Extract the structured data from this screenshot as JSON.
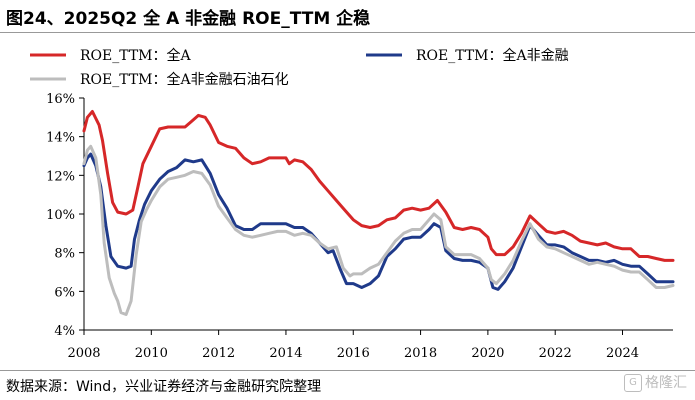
{
  "title": "图24、2025Q2 全 A 非金融 ROE_TTM 企稳",
  "source": "数据来源：Wind，兴业证券经济与金融研究院整理",
  "watermark": "格隆汇",
  "chart_data": {
    "type": "line",
    "xlabel": "",
    "ylabel": "",
    "xlim": [
      2008,
      2025.5
    ],
    "ylim": [
      4,
      16
    ],
    "x_ticks": [
      "2008",
      "2010",
      "2012",
      "2014",
      "2016",
      "2018",
      "2020",
      "2022",
      "2024"
    ],
    "y_ticks": [
      "4%",
      "6%",
      "8%",
      "10%",
      "12%",
      "14%",
      "16%"
    ],
    "grid": false,
    "legend_placement": "top",
    "series": [
      {
        "name": "ROE_TTM：全A",
        "color": "#d62728",
        "points": [
          [
            2008.0,
            14.3
          ],
          [
            2008.1,
            15.0
          ],
          [
            2008.25,
            15.3
          ],
          [
            2008.45,
            14.6
          ],
          [
            2008.55,
            13.8
          ],
          [
            2008.7,
            12.1
          ],
          [
            2008.85,
            10.6
          ],
          [
            2009.0,
            10.1
          ],
          [
            2009.25,
            10.0
          ],
          [
            2009.45,
            10.2
          ],
          [
            2009.6,
            11.4
          ],
          [
            2009.75,
            12.6
          ],
          [
            2010.0,
            13.5
          ],
          [
            2010.25,
            14.4
          ],
          [
            2010.5,
            14.5
          ],
          [
            2010.75,
            14.5
          ],
          [
            2011.0,
            14.5
          ],
          [
            2011.2,
            14.8
          ],
          [
            2011.4,
            15.1
          ],
          [
            2011.6,
            15.0
          ],
          [
            2011.75,
            14.6
          ],
          [
            2012.0,
            13.7
          ],
          [
            2012.25,
            13.5
          ],
          [
            2012.5,
            13.4
          ],
          [
            2012.75,
            12.9
          ],
          [
            2013.0,
            12.6
          ],
          [
            2013.25,
            12.7
          ],
          [
            2013.5,
            12.9
          ],
          [
            2013.75,
            12.9
          ],
          [
            2014.0,
            12.9
          ],
          [
            2014.1,
            12.6
          ],
          [
            2014.25,
            12.8
          ],
          [
            2014.5,
            12.7
          ],
          [
            2014.75,
            12.3
          ],
          [
            2015.0,
            11.7
          ],
          [
            2015.25,
            11.2
          ],
          [
            2015.5,
            10.7
          ],
          [
            2015.75,
            10.2
          ],
          [
            2016.0,
            9.7
          ],
          [
            2016.25,
            9.4
          ],
          [
            2016.5,
            9.3
          ],
          [
            2016.75,
            9.4
          ],
          [
            2017.0,
            9.7
          ],
          [
            2017.25,
            9.8
          ],
          [
            2017.5,
            10.2
          ],
          [
            2017.75,
            10.3
          ],
          [
            2018.0,
            10.2
          ],
          [
            2018.25,
            10.3
          ],
          [
            2018.5,
            10.7
          ],
          [
            2018.75,
            10.1
          ],
          [
            2019.0,
            9.3
          ],
          [
            2019.25,
            9.2
          ],
          [
            2019.5,
            9.3
          ],
          [
            2019.75,
            9.2
          ],
          [
            2020.0,
            8.8
          ],
          [
            2020.1,
            8.2
          ],
          [
            2020.25,
            7.9
          ],
          [
            2020.5,
            7.9
          ],
          [
            2020.75,
            8.3
          ],
          [
            2021.0,
            9.0
          ],
          [
            2021.25,
            9.9
          ],
          [
            2021.5,
            9.5
          ],
          [
            2021.75,
            9.1
          ],
          [
            2022.0,
            9.0
          ],
          [
            2022.25,
            9.1
          ],
          [
            2022.5,
            8.9
          ],
          [
            2022.75,
            8.6
          ],
          [
            2023.0,
            8.5
          ],
          [
            2023.25,
            8.4
          ],
          [
            2023.5,
            8.5
          ],
          [
            2023.75,
            8.3
          ],
          [
            2024.0,
            8.2
          ],
          [
            2024.25,
            8.2
          ],
          [
            2024.5,
            7.8
          ],
          [
            2024.75,
            7.8
          ],
          [
            2025.0,
            7.7
          ],
          [
            2025.25,
            7.6
          ],
          [
            2025.5,
            7.6
          ]
        ]
      },
      {
        "name": "ROE_TTM：全A非金融",
        "color": "#1f3a8a",
        "points": [
          [
            2008.0,
            12.5
          ],
          [
            2008.1,
            12.9
          ],
          [
            2008.2,
            13.1
          ],
          [
            2008.35,
            12.5
          ],
          [
            2008.5,
            11.4
          ],
          [
            2008.65,
            9.4
          ],
          [
            2008.8,
            7.8
          ],
          [
            2009.0,
            7.3
          ],
          [
            2009.25,
            7.2
          ],
          [
            2009.4,
            7.3
          ],
          [
            2009.5,
            8.7
          ],
          [
            2009.65,
            9.7
          ],
          [
            2009.8,
            10.5
          ],
          [
            2010.0,
            11.2
          ],
          [
            2010.25,
            11.8
          ],
          [
            2010.5,
            12.2
          ],
          [
            2010.75,
            12.4
          ],
          [
            2011.0,
            12.8
          ],
          [
            2011.25,
            12.7
          ],
          [
            2011.5,
            12.8
          ],
          [
            2011.75,
            12.1
          ],
          [
            2012.0,
            11.0
          ],
          [
            2012.25,
            10.3
          ],
          [
            2012.5,
            9.4
          ],
          [
            2012.75,
            9.2
          ],
          [
            2013.0,
            9.2
          ],
          [
            2013.25,
            9.5
          ],
          [
            2013.5,
            9.5
          ],
          [
            2013.75,
            9.5
          ],
          [
            2014.0,
            9.5
          ],
          [
            2014.25,
            9.3
          ],
          [
            2014.5,
            9.3
          ],
          [
            2014.75,
            9.0
          ],
          [
            2015.0,
            8.5
          ],
          [
            2015.25,
            8.0
          ],
          [
            2015.4,
            8.1
          ],
          [
            2015.6,
            7.2
          ],
          [
            2015.8,
            6.4
          ],
          [
            2016.0,
            6.4
          ],
          [
            2016.25,
            6.2
          ],
          [
            2016.5,
            6.4
          ],
          [
            2016.75,
            6.8
          ],
          [
            2017.0,
            7.8
          ],
          [
            2017.25,
            8.2
          ],
          [
            2017.5,
            8.7
          ],
          [
            2017.75,
            8.8
          ],
          [
            2018.0,
            8.8
          ],
          [
            2018.25,
            9.2
          ],
          [
            2018.4,
            9.5
          ],
          [
            2018.6,
            9.3
          ],
          [
            2018.75,
            8.1
          ],
          [
            2019.0,
            7.7
          ],
          [
            2019.25,
            7.6
          ],
          [
            2019.5,
            7.6
          ],
          [
            2019.75,
            7.5
          ],
          [
            2020.0,
            7.2
          ],
          [
            2020.15,
            6.2
          ],
          [
            2020.3,
            6.1
          ],
          [
            2020.5,
            6.5
          ],
          [
            2020.75,
            7.2
          ],
          [
            2021.0,
            8.3
          ],
          [
            2021.25,
            9.4
          ],
          [
            2021.5,
            8.9
          ],
          [
            2021.75,
            8.4
          ],
          [
            2022.0,
            8.4
          ],
          [
            2022.25,
            8.3
          ],
          [
            2022.5,
            8.0
          ],
          [
            2022.75,
            7.8
          ],
          [
            2023.0,
            7.6
          ],
          [
            2023.25,
            7.6
          ],
          [
            2023.5,
            7.5
          ],
          [
            2023.75,
            7.6
          ],
          [
            2024.0,
            7.4
          ],
          [
            2024.25,
            7.3
          ],
          [
            2024.5,
            7.3
          ],
          [
            2024.75,
            6.9
          ],
          [
            2025.0,
            6.5
          ],
          [
            2025.25,
            6.5
          ],
          [
            2025.5,
            6.5
          ]
        ]
      },
      {
        "name": "ROE_TTM：全A非金融石油石化",
        "color": "#bdbdbd",
        "points": [
          [
            2008.0,
            12.6
          ],
          [
            2008.1,
            13.3
          ],
          [
            2008.2,
            13.5
          ],
          [
            2008.35,
            12.9
          ],
          [
            2008.5,
            11.0
          ],
          [
            2008.6,
            8.5
          ],
          [
            2008.75,
            6.7
          ],
          [
            2008.9,
            5.9
          ],
          [
            2009.0,
            5.5
          ],
          [
            2009.1,
            4.9
          ],
          [
            2009.25,
            4.8
          ],
          [
            2009.4,
            5.5
          ],
          [
            2009.55,
            7.9
          ],
          [
            2009.7,
            9.6
          ],
          [
            2009.85,
            10.2
          ],
          [
            2010.0,
            10.7
          ],
          [
            2010.25,
            11.4
          ],
          [
            2010.5,
            11.8
          ],
          [
            2010.75,
            11.9
          ],
          [
            2011.0,
            12.0
          ],
          [
            2011.25,
            12.2
          ],
          [
            2011.5,
            12.1
          ],
          [
            2011.75,
            11.5
          ],
          [
            2012.0,
            10.4
          ],
          [
            2012.25,
            9.8
          ],
          [
            2012.5,
            9.2
          ],
          [
            2012.75,
            8.9
          ],
          [
            2013.0,
            8.8
          ],
          [
            2013.25,
            8.9
          ],
          [
            2013.5,
            9.0
          ],
          [
            2013.75,
            9.1
          ],
          [
            2014.0,
            9.1
          ],
          [
            2014.25,
            8.9
          ],
          [
            2014.5,
            9.0
          ],
          [
            2014.75,
            8.9
          ],
          [
            2015.0,
            8.5
          ],
          [
            2015.25,
            8.2
          ],
          [
            2015.5,
            8.3
          ],
          [
            2015.7,
            7.2
          ],
          [
            2015.9,
            6.8
          ],
          [
            2016.0,
            6.9
          ],
          [
            2016.25,
            6.9
          ],
          [
            2016.5,
            7.2
          ],
          [
            2016.75,
            7.4
          ],
          [
            2017.0,
            8.0
          ],
          [
            2017.25,
            8.6
          ],
          [
            2017.5,
            9.0
          ],
          [
            2017.75,
            9.2
          ],
          [
            2018.0,
            9.2
          ],
          [
            2018.25,
            9.7
          ],
          [
            2018.4,
            10.0
          ],
          [
            2018.6,
            9.7
          ],
          [
            2018.75,
            8.3
          ],
          [
            2019.0,
            7.9
          ],
          [
            2019.25,
            7.9
          ],
          [
            2019.5,
            7.9
          ],
          [
            2019.75,
            7.7
          ],
          [
            2020.0,
            7.2
          ],
          [
            2020.1,
            6.6
          ],
          [
            2020.25,
            6.4
          ],
          [
            2020.5,
            6.9
          ],
          [
            2020.75,
            7.6
          ],
          [
            2021.0,
            8.6
          ],
          [
            2021.25,
            9.5
          ],
          [
            2021.5,
            8.7
          ],
          [
            2021.75,
            8.3
          ],
          [
            2022.0,
            8.2
          ],
          [
            2022.25,
            8.0
          ],
          [
            2022.5,
            7.8
          ],
          [
            2022.75,
            7.6
          ],
          [
            2023.0,
            7.4
          ],
          [
            2023.25,
            7.5
          ],
          [
            2023.5,
            7.4
          ],
          [
            2023.75,
            7.3
          ],
          [
            2024.0,
            7.1
          ],
          [
            2024.25,
            7.0
          ],
          [
            2024.5,
            7.0
          ],
          [
            2024.75,
            6.6
          ],
          [
            2025.0,
            6.2
          ],
          [
            2025.25,
            6.2
          ],
          [
            2025.5,
            6.3
          ]
        ]
      }
    ]
  }
}
